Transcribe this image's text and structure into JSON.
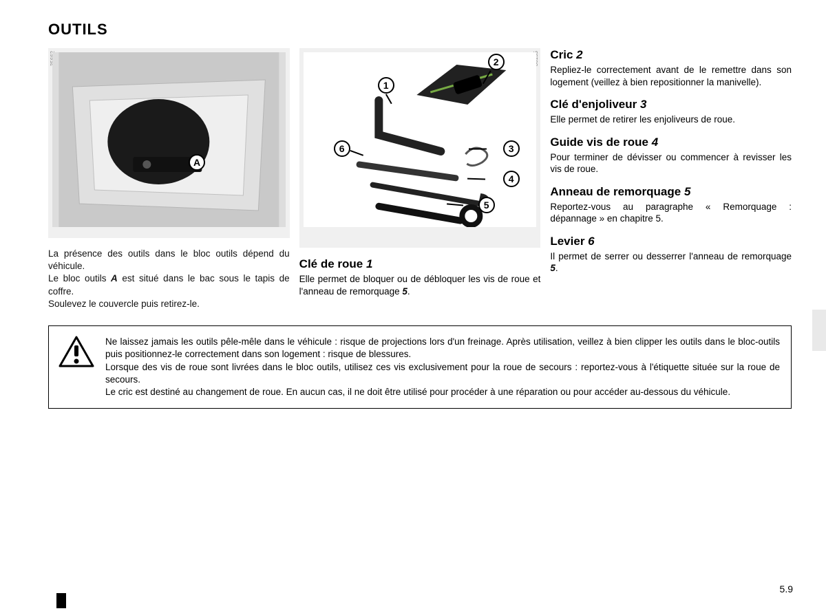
{
  "title": "OUTILS",
  "fig1": {
    "ref": "35662",
    "calloutA": "A",
    "caption_lines": "La présence des outils dans le bloc outils dépend du véhicule.\nLe bloc outils A est situé dans le bac sous le tapis de coffre.\nSoulevez le couvercle puis retirez-le.",
    "caption_html": "La présence des outils dans le bloc outils dépend du véhicule.<br>Le bloc outils <b><i>A</i></b> est situé dans le bac sous le tapis de coffre.<br>Soulevez le couvercle puis retirez-le."
  },
  "fig2": {
    "ref": "36155",
    "labels": {
      "n1": "1",
      "n2": "2",
      "n3": "3",
      "n4": "4",
      "n5": "5",
      "n6": "6"
    }
  },
  "col2": {
    "s1": {
      "head_text": "Clé de roue ",
      "head_num": "1",
      "body_html": "Elle permet de bloquer ou de débloquer les vis de roue et l'anneau de remorquage <b><i>5</i></b>."
    }
  },
  "col3": {
    "s2": {
      "head_text": "Cric ",
      "head_num": "2",
      "body": "Repliez-le correctement avant de le remettre dans son logement (veillez à bien repositionner la manivelle)."
    },
    "s3": {
      "head_text": "Clé d'enjoliveur ",
      "head_num": "3",
      "body": "Elle permet de retirer les enjoliveurs de roue."
    },
    "s4": {
      "head_text": "Guide vis de roue ",
      "head_num": "4",
      "body": "Pour terminer de dévisser ou commencer à revisser les vis de roue."
    },
    "s5": {
      "head_text": "Anneau de remorquage ",
      "head_num": "5",
      "body": "Reportez-vous au paragraphe « Remorquage : dépannage » en chapitre 5."
    },
    "s6": {
      "head_text": "Levier ",
      "head_num": "6",
      "body_html": "Il permet de serrer ou desserrer l'anneau de remorquage <b><i>5</i></b>."
    }
  },
  "warning_html": "Ne laissez jamais les outils pêle-mêle dans le véhicule : risque de projections lors d'un freinage. Après utilisation, veillez à bien clipper les outils dans le bloc-outils puis positionnez-le correctement dans son logement : risque de blessures.<br>Lorsque des vis de roue sont livrées dans le bloc outils, utilisez ces vis exclusivement pour la roue de secours : reportez-vous à l'étiquette située sur la roue de secours.<br>Le cric est destiné au changement de roue. En aucun cas, il ne doit être utilisé pour procéder à une réparation ou pour accéder au-dessous du véhicule.",
  "page_number": "5.9",
  "colors": {
    "figure_bg": "#f0f0f0",
    "photo_bg": "#dddddd",
    "text": "#111111",
    "thumb": "#e9e9e9"
  }
}
